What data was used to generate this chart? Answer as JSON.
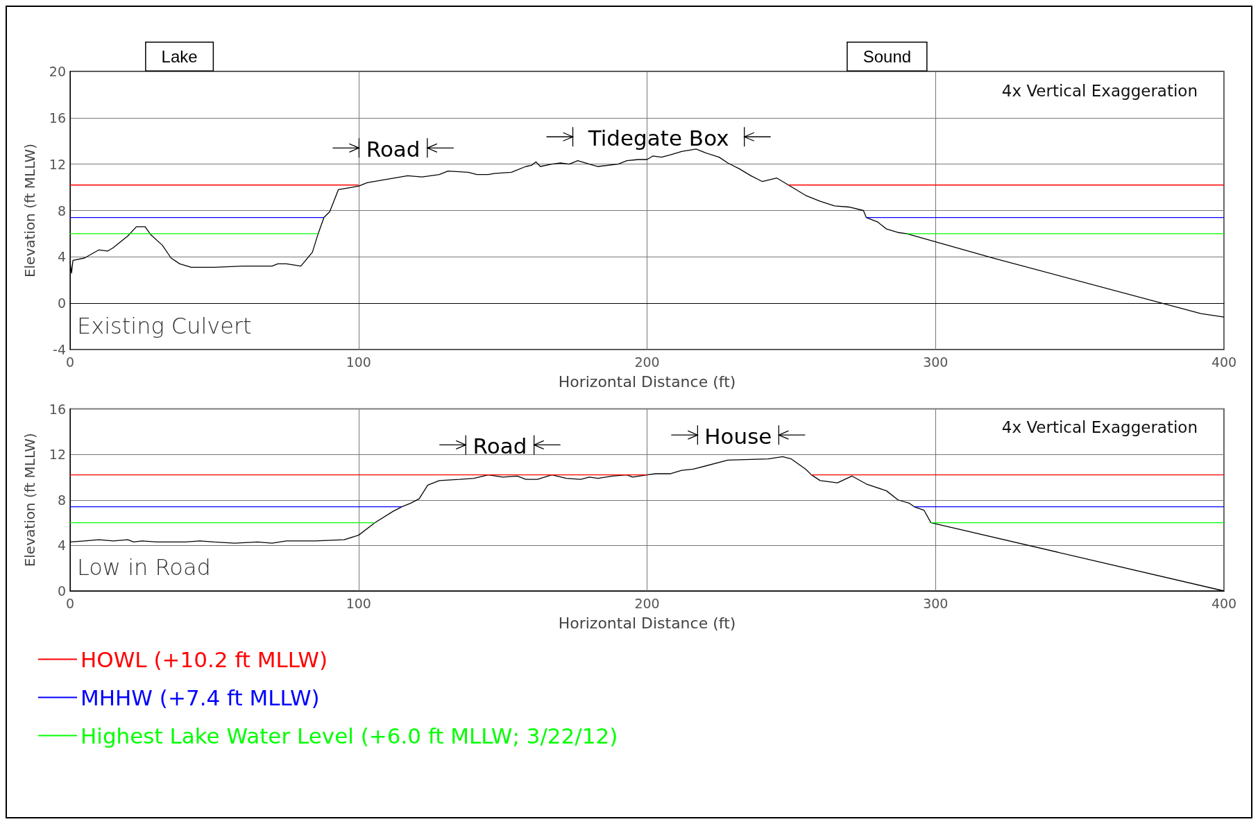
{
  "chart_data": [
    {
      "type": "line",
      "xlabel": "Horizontal Distance (ft)",
      "ylabel": "Elevation (ft MLLW)",
      "xlim": [
        0,
        400
      ],
      "xticks": [
        0,
        100,
        200,
        300,
        400
      ],
      "ylim": [
        -4,
        20
      ],
      "yticks": [
        -4,
        0,
        4,
        8,
        12,
        16,
        20
      ],
      "grid": true,
      "legend": false,
      "marker": "none",
      "line_style": "solid",
      "annotations": [
        "Lake",
        "Sound",
        "4x Vertical Exaggeration",
        "Existing Culvert",
        "Road",
        "Tidegate Box"
      ],
      "series": [
        {
          "color": "#000000",
          "x": [
            0,
            0.5,
            1,
            5,
            10,
            13,
            15,
            20,
            23,
            26,
            28,
            32,
            35,
            38,
            42,
            50,
            60,
            70,
            72,
            75,
            80,
            84,
            86,
            88,
            90,
            93,
            100,
            103,
            110,
            117,
            122,
            128,
            131,
            138,
            141,
            145,
            147,
            153,
            158,
            160,
            161.5,
            163,
            167,
            170,
            173,
            176,
            180,
            183,
            190,
            193,
            197,
            200,
            202,
            205,
            208,
            212,
            217,
            220,
            225,
            228,
            232,
            236,
            240,
            245,
            249,
            255,
            260,
            265,
            270,
            275,
            276,
            280,
            283,
            287,
            290,
            320,
            392,
            400
          ],
          "values": [
            3.6,
            2.6,
            3.7,
            3.9,
            4.6,
            4.5,
            4.8,
            5.8,
            6.6,
            6.6,
            5.9,
            5.0,
            3.9,
            3.4,
            3.1,
            3.1,
            3.2,
            3.2,
            3.4,
            3.4,
            3.2,
            4.4,
            6.0,
            7.4,
            7.9,
            9.8,
            10.1,
            10.4,
            10.7,
            11.0,
            10.9,
            11.1,
            11.4,
            11.3,
            11.1,
            11.1,
            11.2,
            11.3,
            11.8,
            11.9,
            12.2,
            11.8,
            12.0,
            12.1,
            12.0,
            12.3,
            12.0,
            11.8,
            12.0,
            12.3,
            12.4,
            12.4,
            12.7,
            12.6,
            12.8,
            13.1,
            13.3,
            13.0,
            12.6,
            12.1,
            11.6,
            11.0,
            10.5,
            10.8,
            10.2,
            9.3,
            8.8,
            8.4,
            8.3,
            8.0,
            7.4,
            7.0,
            6.4,
            6.1,
            6.0,
            3.9,
            -0.9,
            -1.2
          ]
        },
        {
          "color": "#ff0000",
          "x": [
            0,
            100,
            175,
            249,
            400
          ],
          "values": [
            10.2,
            10.2,
            null,
            10.2,
            10.2
          ]
        },
        {
          "color": "#0000ff",
          "x": [
            0,
            88,
            180,
            276,
            400
          ],
          "values": [
            7.4,
            7.4,
            null,
            7.4,
            7.4
          ]
        },
        {
          "color": "#00ff00",
          "x": [
            0,
            86,
            190,
            290,
            400
          ],
          "values": [
            6.0,
            6.0,
            null,
            6.0,
            6.0
          ]
        }
      ]
    },
    {
      "type": "line",
      "xlabel": "Horizontal Distance (ft)",
      "ylabel": "Elevation (ft MLLW)",
      "xlim": [
        0,
        400
      ],
      "xticks": [
        0,
        100,
        200,
        300,
        400
      ],
      "ylim": [
        0,
        16
      ],
      "yticks": [
        0,
        4,
        8,
        12,
        16
      ],
      "grid": true,
      "legend": "bottom left",
      "marker": "none",
      "line_style": "solid",
      "annotations": [
        "4x Vertical Exaggeration",
        "Low in Road",
        "Road",
        "House"
      ],
      "series": [
        {
          "color": "#000000",
          "x": [
            0,
            5,
            10,
            15,
            20,
            22,
            25,
            30,
            40,
            45,
            50,
            57,
            65,
            70,
            75,
            85,
            95,
            100,
            105.7,
            112,
            115,
            118,
            121,
            124,
            128,
            135,
            140,
            145,
            150,
            155,
            158,
            162,
            167,
            172,
            177,
            180,
            183,
            188,
            193,
            195,
            200,
            203,
            208,
            212,
            216,
            228,
            242,
            247,
            250,
            255,
            257,
            260,
            266,
            271,
            276,
            283,
            287,
            291,
            292.6,
            296,
            298.4,
            400
          ],
          "values": [
            4.3,
            4.4,
            4.5,
            4.4,
            4.5,
            4.3,
            4.4,
            4.3,
            4.3,
            4.4,
            4.3,
            4.2,
            4.3,
            4.2,
            4.4,
            4.4,
            4.5,
            4.9,
            6.0,
            7.0,
            7.4,
            7.7,
            8.1,
            9.3,
            9.7,
            9.8,
            9.9,
            10.2,
            10.0,
            10.1,
            9.8,
            9.8,
            10.2,
            9.9,
            9.8,
            10.0,
            9.9,
            10.1,
            10.2,
            10.0,
            10.2,
            10.3,
            10.3,
            10.6,
            10.7,
            11.5,
            11.6,
            11.8,
            11.6,
            10.7,
            10.2,
            9.7,
            9.5,
            10.1,
            9.4,
            8.8,
            8.0,
            7.7,
            7.4,
            7.1,
            6.0,
            0.0
          ]
        },
        {
          "name": "HOWL (+10.2 ft MLLW)",
          "color": "#ff0000",
          "x": [
            0,
            200,
            230,
            257,
            400
          ],
          "values": [
            10.2,
            10.2,
            null,
            10.2,
            10.2
          ]
        },
        {
          "name": "MHHW (+7.4 ft MLLW)",
          "color": "#0000ff",
          "x": [
            0,
            115,
            200,
            292.6,
            400
          ],
          "values": [
            7.4,
            7.4,
            null,
            7.4,
            7.4
          ]
        },
        {
          "name": "Highest Lake Water Level (+6.0 ft MLLW; 3/22/12)",
          "color": "#00ff00",
          "x": [
            0,
            105.7,
            200,
            298.4,
            400
          ],
          "values": [
            6.0,
            6.0,
            null,
            6.0,
            6.0
          ]
        }
      ]
    }
  ]
}
